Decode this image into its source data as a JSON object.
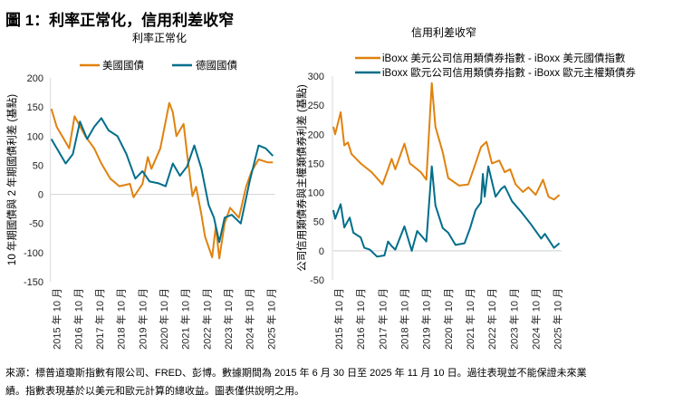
{
  "figure_title": "圖 1：利率正常化，信用利差收窄",
  "footnote": {
    "line1": "來源：標普道瓊斯指數有限公司、FRED、彭博。數據期間為 2015 年 6 月 30 日至 2025 年 11 月 10 日。過往表現並不能保證未來業",
    "line2": "績。指數表現基於以美元和歐元計算的總收益。圖表僅供說明之用。"
  },
  "colors": {
    "orange": "#E0820E",
    "teal": "#006E8A",
    "grid": "#d9d9d9"
  },
  "chart_data": [
    {
      "type": "line",
      "title": "利率正常化",
      "ylabel": "10 年期國債與 2 年期國債利差 (基點)",
      "xlabel": "",
      "ylim": [
        -150,
        200
      ],
      "yticks": [
        200,
        150,
        100,
        50,
        0,
        -50,
        -100,
        -150
      ],
      "xlim": [
        "2015-06",
        "2025-11"
      ],
      "xticks": [
        "2015-10",
        "2016-10",
        "2017-10",
        "2018-10",
        "2019-10",
        "2020-10",
        "2021-10",
        "2022-10",
        "2023-10",
        "2024-10",
        "2025-10"
      ],
      "xtick_labels": [
        "2015 年 10 月",
        "2016 年 10 月",
        "2017 年 10 月",
        "2018 年 10 月",
        "2019 年 10 月",
        "2020 年 10 月",
        "2021 年 10 月",
        "2022 年 10 月",
        "2023 年 10 月",
        "2024 年 10 月",
        "2025 年 10 月"
      ],
      "grid": "zero line only",
      "legend": "top",
      "series": [
        {
          "name": "美國國債",
          "color": "#E0820E",
          "points": [
            [
              "2015-07",
              147
            ],
            [
              "2015-10",
              116
            ],
            [
              "2016-02",
              95
            ],
            [
              "2016-05",
              79
            ],
            [
              "2016-08",
              134
            ],
            [
              "2017-02",
              100
            ],
            [
              "2017-07",
              79
            ],
            [
              "2017-11",
              53
            ],
            [
              "2018-04",
              27
            ],
            [
              "2018-09",
              14
            ],
            [
              "2019-03",
              18
            ],
            [
              "2019-05",
              -5
            ],
            [
              "2019-10",
              18
            ],
            [
              "2020-01",
              64
            ],
            [
              "2020-03",
              44
            ],
            [
              "2020-08",
              79
            ],
            [
              "2021-01",
              157
            ],
            [
              "2021-03",
              141
            ],
            [
              "2021-05",
              100
            ],
            [
              "2021-09",
              121
            ],
            [
              "2021-11",
              69
            ],
            [
              "2022-02",
              -3
            ],
            [
              "2022-04",
              13
            ],
            [
              "2022-07",
              -35
            ],
            [
              "2022-09",
              -72
            ],
            [
              "2023-01",
              -108
            ],
            [
              "2023-03",
              -55
            ],
            [
              "2023-05",
              -110
            ],
            [
              "2023-08",
              -50
            ],
            [
              "2023-11",
              -23
            ],
            [
              "2024-04",
              -40
            ],
            [
              "2024-08",
              13
            ],
            [
              "2024-11",
              39
            ],
            [
              "2025-03",
              60
            ],
            [
              "2025-08",
              55
            ],
            [
              "2025-11",
              55
            ]
          ]
        },
        {
          "name": "德國國債",
          "color": "#006E8A",
          "points": [
            [
              "2015-07",
              95
            ],
            [
              "2015-11",
              74
            ],
            [
              "2016-03",
              53
            ],
            [
              "2016-07",
              69
            ],
            [
              "2016-11",
              125
            ],
            [
              "2017-03",
              95
            ],
            [
              "2017-07",
              116
            ],
            [
              "2017-11",
              131
            ],
            [
              "2018-03",
              110
            ],
            [
              "2018-08",
              100
            ],
            [
              "2019-01",
              69
            ],
            [
              "2019-06",
              27
            ],
            [
              "2019-10",
              40
            ],
            [
              "2020-02",
              22
            ],
            [
              "2020-07",
              19
            ],
            [
              "2020-11",
              14
            ],
            [
              "2021-03",
              53
            ],
            [
              "2021-07",
              32
            ],
            [
              "2021-11",
              48
            ],
            [
              "2022-03",
              84
            ],
            [
              "2022-07",
              44
            ],
            [
              "2022-11",
              -18
            ],
            [
              "2023-02",
              -40
            ],
            [
              "2023-05",
              -82
            ],
            [
              "2023-08",
              -40
            ],
            [
              "2023-12",
              -35
            ],
            [
              "2024-05",
              -50
            ],
            [
              "2024-10",
              23
            ],
            [
              "2025-03",
              84
            ],
            [
              "2025-07",
              79
            ],
            [
              "2025-11",
              66
            ]
          ]
        }
      ]
    },
    {
      "type": "line",
      "title": "信用利差收窄",
      "ylabel": "公司信用類債券與主權類債券利差 (基點)",
      "xlabel": "",
      "ylim": [
        -50,
        300
      ],
      "yticks": [
        300,
        250,
        200,
        150,
        100,
        50,
        0,
        -50
      ],
      "xlim": [
        "2015-06",
        "2025-11"
      ],
      "xticks": [
        "2015-10",
        "2016-10",
        "2017-10",
        "2018-10",
        "2019-10",
        "2020-10",
        "2021-10",
        "2022-10",
        "2023-10",
        "2024-10",
        "2025-10"
      ],
      "xtick_labels": [
        "2015 年 10 月",
        "2016 年 10 月",
        "2017 年 10 月",
        "2018 年 10 月",
        "2019 年 10 月",
        "2020 年 10 月",
        "2021 年 10 月",
        "2022 年 10 月",
        "2023 年 10 月",
        "2024 年 10 月",
        "2025 年 10 月"
      ],
      "grid": "zero line only",
      "legend": "top",
      "series": [
        {
          "name": "iBoxx 美元公司信用類債券指數 - iBoxx 美元國債指數",
          "color": "#E0820E",
          "points": [
            [
              "2015-07",
              213
            ],
            [
              "2015-08",
              200
            ],
            [
              "2015-11",
              238
            ],
            [
              "2016-01",
              181
            ],
            [
              "2016-03",
              186
            ],
            [
              "2016-05",
              166
            ],
            [
              "2016-10",
              150
            ],
            [
              "2017-04",
              135
            ],
            [
              "2017-10",
              114
            ],
            [
              "2018-01",
              140
            ],
            [
              "2018-03",
              158
            ],
            [
              "2018-05",
              140
            ],
            [
              "2018-10",
              184
            ],
            [
              "2019-01",
              150
            ],
            [
              "2019-03",
              145
            ],
            [
              "2019-07",
              135
            ],
            [
              "2019-10",
              122
            ],
            [
              "2020-01",
              288
            ],
            [
              "2020-03",
              213
            ],
            [
              "2020-07",
              169
            ],
            [
              "2020-10",
              125
            ],
            [
              "2021-04",
              112
            ],
            [
              "2021-09",
              114
            ],
            [
              "2022-01",
              150
            ],
            [
              "2022-04",
              178
            ],
            [
              "2022-07",
              187
            ],
            [
              "2022-10",
              150
            ],
            [
              "2023-02",
              155
            ],
            [
              "2023-05",
              135
            ],
            [
              "2023-08",
              140
            ],
            [
              "2023-11",
              114
            ],
            [
              "2024-03",
              101
            ],
            [
              "2024-06",
              109
            ],
            [
              "2024-10",
              96
            ],
            [
              "2025-02",
              122
            ],
            [
              "2025-05",
              93
            ],
            [
              "2025-08",
              88
            ],
            [
              "2025-11",
              96
            ]
          ]
        },
        {
          "name": "iBoxx 歐元公司信用類債券指數 - iBoxx 歐元主權類債券",
          "color": "#006E8A",
          "points": [
            [
              "2015-07",
              70
            ],
            [
              "2015-08",
              55
            ],
            [
              "2015-11",
              80
            ],
            [
              "2016-01",
              40
            ],
            [
              "2016-04",
              57
            ],
            [
              "2016-06",
              31
            ],
            [
              "2016-10",
              23
            ],
            [
              "2016-12",
              5
            ],
            [
              "2017-03",
              2
            ],
            [
              "2017-07",
              -10
            ],
            [
              "2017-11",
              -8
            ],
            [
              "2018-01",
              16
            ],
            [
              "2018-03",
              8
            ],
            [
              "2018-05",
              2
            ],
            [
              "2018-10",
              42
            ],
            [
              "2019-02",
              0
            ],
            [
              "2019-05",
              34
            ],
            [
              "2019-10",
              16
            ],
            [
              "2020-01",
              145
            ],
            [
              "2020-03",
              78
            ],
            [
              "2020-07",
              39
            ],
            [
              "2020-10",
              31
            ],
            [
              "2021-02",
              10
            ],
            [
              "2021-07",
              13
            ],
            [
              "2021-10",
              39
            ],
            [
              "2022-01",
              70
            ],
            [
              "2022-04",
              83
            ],
            [
              "2022-05",
              132
            ],
            [
              "2022-06",
              93
            ],
            [
              "2022-08",
              145
            ],
            [
              "2022-12",
              93
            ],
            [
              "2023-03",
              106
            ],
            [
              "2023-05",
              111
            ],
            [
              "2023-09",
              85
            ],
            [
              "2024-02",
              67
            ],
            [
              "2024-07",
              47
            ],
            [
              "2025-01",
              21
            ],
            [
              "2025-03",
              29
            ],
            [
              "2025-08",
              5
            ],
            [
              "2025-11",
              13
            ]
          ]
        }
      ]
    }
  ]
}
